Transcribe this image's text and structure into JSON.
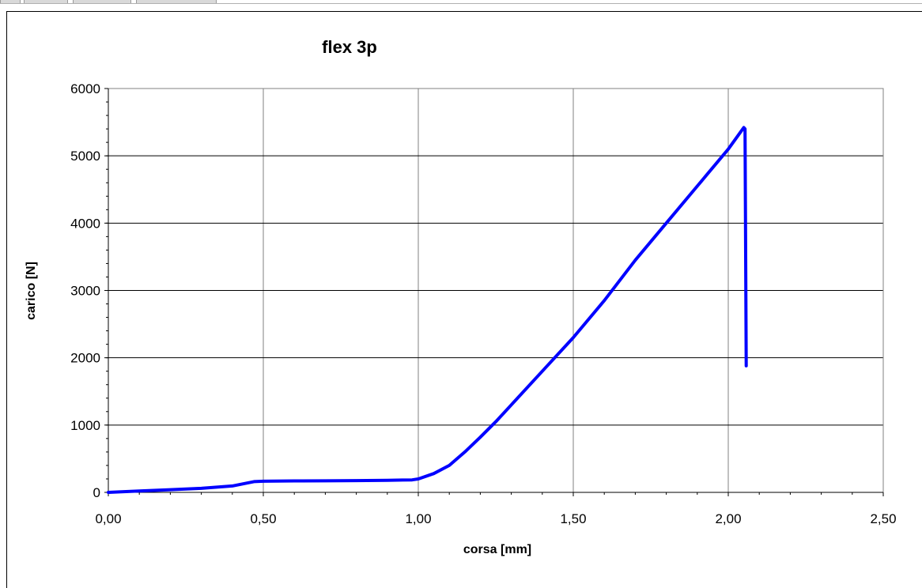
{
  "chart_data": {
    "type": "line",
    "title": "flex 3p",
    "xlabel": "corsa [mm]",
    "ylabel": "carico [N]",
    "xlim": [
      0,
      2.5
    ],
    "ylim": [
      0,
      6000
    ],
    "x_ticks": [
      "0,00",
      "0,50",
      "1,00",
      "1,50",
      "2,00",
      "2,50"
    ],
    "y_ticks": [
      "0",
      "1000",
      "2000",
      "3000",
      "4000",
      "5000",
      "6000"
    ],
    "grid": true,
    "legend": "none",
    "series": [
      {
        "color": "#0000ff",
        "x": [
          0.0,
          0.1,
          0.2,
          0.3,
          0.4,
          0.47,
          0.5,
          0.6,
          0.7,
          0.8,
          0.9,
          0.98,
          1.0,
          1.05,
          1.1,
          1.15,
          1.2,
          1.25,
          1.3,
          1.4,
          1.5,
          1.6,
          1.7,
          1.8,
          1.9,
          2.0,
          2.05,
          2.054,
          2.058
        ],
        "y": [
          0,
          20,
          40,
          60,
          95,
          160,
          165,
          170,
          172,
          175,
          180,
          185,
          200,
          280,
          400,
          600,
          820,
          1050,
          1300,
          1800,
          2300,
          2850,
          3450,
          4000,
          4550,
          5100,
          5420,
          5400,
          1880
        ]
      }
    ]
  }
}
